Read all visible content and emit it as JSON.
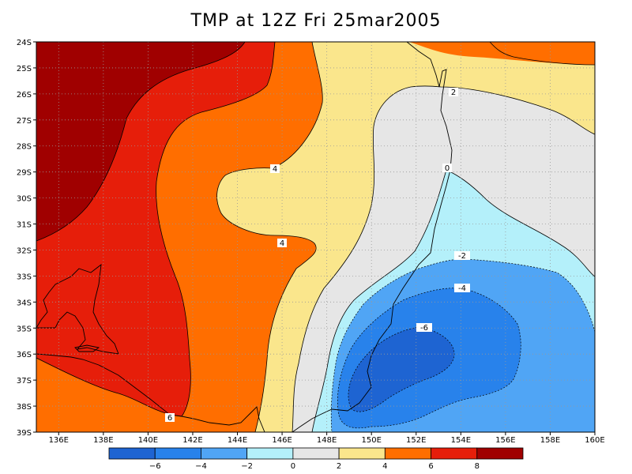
{
  "title": "TMP at 12Z Fri 25mar2005",
  "map": {
    "lon_range": [
      135,
      160
    ],
    "lat_range": [
      -39,
      -24
    ],
    "lat_ticks": [
      "24S",
      "25S",
      "26S",
      "27S",
      "28S",
      "29S",
      "30S",
      "31S",
      "32S",
      "33S",
      "34S",
      "35S",
      "36S",
      "37S",
      "38S",
      "39S"
    ],
    "lon_ticks": [
      "136E",
      "138E",
      "140E",
      "142E",
      "144E",
      "146E",
      "148E",
      "150E",
      "152E",
      "154E",
      "156E",
      "158E",
      "160E"
    ],
    "grid": "dotted",
    "contour_labels": [
      "2",
      "0",
      "4",
      "4",
      "-2",
      "-4",
      "-6",
      "6"
    ]
  },
  "colorbar": {
    "colors": [
      "#1e64d2",
      "#2882eb",
      "#50a5f5",
      "#b4f0fa",
      "#e6e6e6",
      "#fae68c",
      "#ff6e00",
      "#e61e0a",
      "#a00000"
    ],
    "labels": [
      "-6",
      "-4",
      "-2",
      "0",
      "2",
      "4",
      "6",
      "8"
    ]
  }
}
